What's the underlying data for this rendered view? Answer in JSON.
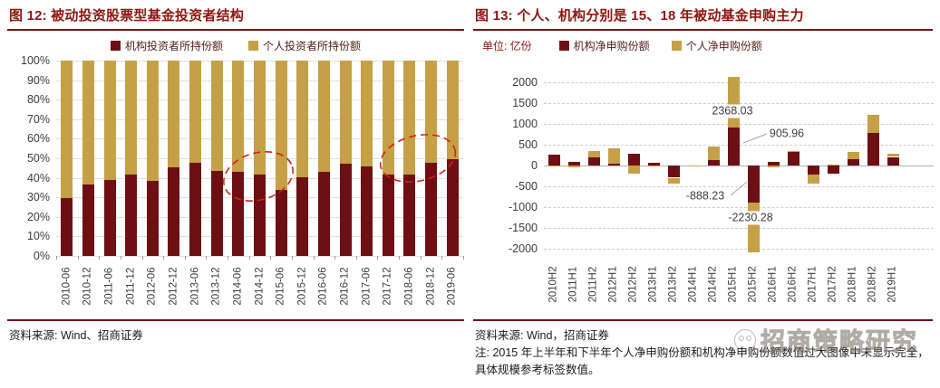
{
  "figure12": {
    "title": "图 12: 被动投资股票型基金投资者结构",
    "source": "资料来源: Wind、招商证券"
  },
  "figure13": {
    "title": "图 13: 个人、机构分别是 15、18 年被动基金申购主力",
    "unit_label": "单位: 亿份",
    "source": "资料来源: Wind，招商证券",
    "note": "注: 2015 年上半年和下半年个人净申购份额和机构净申购份额数值过大图像中未显示完全，具体规模参考标签数值。"
  },
  "watermark": {
    "text": "招商策略研究"
  },
  "colors": {
    "institutional": "#6e0f14",
    "personal": "#c5a046",
    "title_red": "#8e1510",
    "rule_red": "#741012",
    "highlight_ellipse": "#cf2318"
  },
  "chart_data": [
    {
      "id": "fig12",
      "type": "bar",
      "stacked": true,
      "percent": true,
      "title": "被动投资股票型基金投资者结构",
      "categories": [
        "2010-06",
        "2010-12",
        "2011-06",
        "2011-12",
        "2012-06",
        "2012-12",
        "2013-06",
        "2013-12",
        "2014-06",
        "2014-12",
        "2015-06",
        "2015-12",
        "2016-06",
        "2016-12",
        "2017-06",
        "2017-12",
        "2018-06",
        "2018-12",
        "2019-06"
      ],
      "series": [
        {
          "name": "机构投资者所持份额",
          "color": "#6e0f14",
          "values": [
            29.5,
            36.5,
            39,
            41.5,
            38.5,
            45.5,
            47.5,
            43.5,
            43,
            41.5,
            34,
            40.5,
            43,
            47,
            46,
            41.5,
            41.5,
            47.5,
            49.5
          ]
        },
        {
          "name": "个人投资者所持份额",
          "color": "#c5a046",
          "values": [
            70.5,
            63.5,
            61,
            58.5,
            61.5,
            54.5,
            52.5,
            56.5,
            57,
            58.5,
            66,
            59.5,
            57,
            53,
            54,
            58.5,
            58.5,
            52.5,
            50.5
          ]
        }
      ],
      "ylim": [
        0,
        100
      ],
      "yticks": [
        "0%",
        "10%",
        "20%",
        "30%",
        "40%",
        "50%",
        "60%",
        "70%",
        "80%",
        "90%",
        "100%"
      ],
      "grid": true,
      "legend_position": "top",
      "annotations": [
        {
          "type": "dashed-ellipse",
          "around": [
            "2014-12",
            "2015-06"
          ]
        },
        {
          "type": "dashed-ellipse",
          "around": [
            "2018-06",
            "2018-12",
            "2019-06"
          ]
        }
      ]
    },
    {
      "id": "fig13",
      "type": "bar",
      "stacked": true,
      "unit": "亿份",
      "title": "个人、机构分别是 15、18 年被动基金申购主力",
      "categories": [
        "2010H2",
        "2011H1",
        "2011H2",
        "2012H1",
        "2012H2",
        "2013H1",
        "2013H2",
        "2014H1",
        "2014H2",
        "2015H1",
        "2015H2",
        "2016H1",
        "2016H2",
        "2017H1",
        "2017H2",
        "2018H1",
        "2018H2",
        "2019H1"
      ],
      "series": [
        {
          "name": "机构净申购份额",
          "color": "#6e0f14",
          "values": [
            245,
            70,
            190,
            30,
            275,
            60,
            -300,
            -10,
            115,
            905.96,
            -888.23,
            90,
            330,
            -230,
            -200,
            145,
            780,
            200
          ]
        },
        {
          "name": "个人净申购份额",
          "color": "#c5a046",
          "values": [
            -15,
            -40,
            150,
            370,
            -195,
            -25,
            -150,
            -25,
            340,
            2368.03,
            -2230.28,
            -60,
            20,
            -215,
            10,
            180,
            435,
            85
          ]
        }
      ],
      "ylim": [
        -2000,
        2000
      ],
      "yticks": [
        "-2000",
        "-1500",
        "-1000",
        "-500",
        "0",
        "500",
        "1000",
        "1500",
        "2000"
      ],
      "grid": "dashed",
      "legend_position": "top",
      "clipped_bars": [
        "2015H1",
        "2015H2"
      ],
      "annotations": [
        {
          "series": "个人净申购份额",
          "category": "2015H1",
          "label": "2368.03"
        },
        {
          "series": "机构净申购份额",
          "category": "2015H1",
          "label": "905.96"
        },
        {
          "series": "机构净申购份额",
          "category": "2015H2",
          "label": "-888.23"
        },
        {
          "series": "个人净申购份额",
          "category": "2015H2",
          "label": "-2230.28"
        }
      ]
    }
  ]
}
